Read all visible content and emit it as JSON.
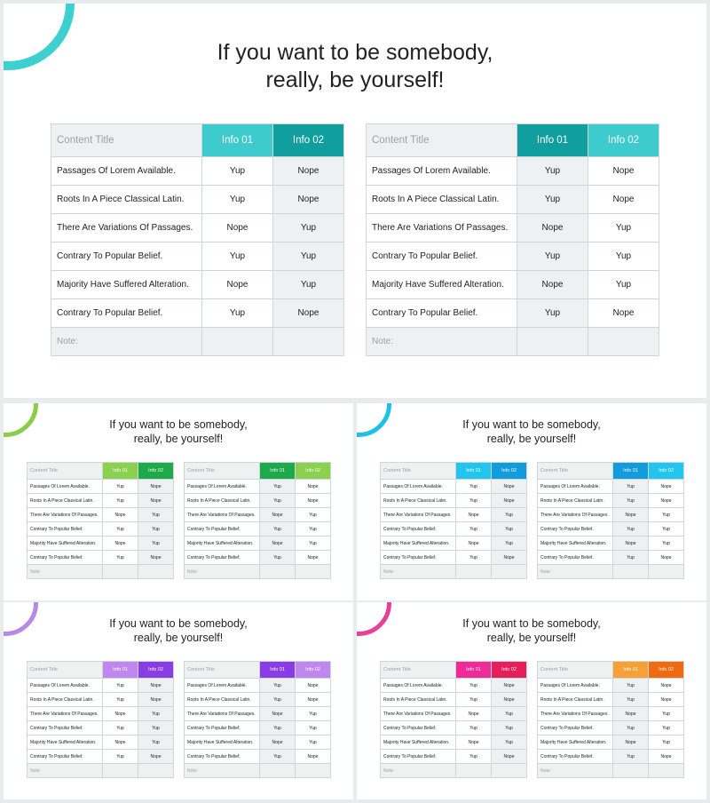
{
  "table": {
    "title_header": "Content Title",
    "info_headers": [
      "Info 01",
      "Info 02"
    ],
    "rows": [
      {
        "label": "Passages Of Lorem Available.",
        "info1": "Yup",
        "info2": "Nope"
      },
      {
        "label": "Roots In A Piece Classical Latin.",
        "info1": "Yup",
        "info2": "Nope"
      },
      {
        "label": "There Are Variations Of Passages.",
        "info1": "Nope",
        "info2": "Yup"
      },
      {
        "label": "Contrary To Popular Belief.",
        "info1": "Yup",
        "info2": "Yup"
      },
      {
        "label": "Majority Have Suffered Alteration.",
        "info1": "Nope",
        "info2": "Yup"
      },
      {
        "label": "Contrary To Popular Belief.",
        "info1": "Yup",
        "info2": "Nope"
      }
    ],
    "note_label": "Note:"
  },
  "slides": [
    {
      "title_lines": [
        "If you want to be somebody,",
        "really, be yourself!"
      ],
      "ring_color": "#3ecfd1",
      "left_table": {
        "header_colors": [
          "#3dcbcd",
          "#109e9f"
        ],
        "shaded_col": 1
      },
      "right_table": {
        "header_colors": [
          "#109e9f",
          "#3dcbcd"
        ],
        "shaded_col": 0
      }
    },
    {
      "title_lines": [
        "If you want to be somebody,",
        "really, be yourself!"
      ],
      "ring_color": "#8bcc4a",
      "left_table": {
        "header_colors": [
          "#8bd04f",
          "#1ea94a"
        ],
        "shaded_col": 1
      },
      "right_table": {
        "header_colors": [
          "#1ea94a",
          "#8bd04f"
        ],
        "shaded_col": 0
      }
    },
    {
      "title_lines": [
        "If you want to be somebody,",
        "really, be yourself!"
      ],
      "ring_color": "#1ec0e6",
      "left_table": {
        "header_colors": [
          "#22c5ee",
          "#129bdd"
        ],
        "shaded_col": 1
      },
      "right_table": {
        "header_colors": [
          "#129bdd",
          "#22c5ee"
        ],
        "shaded_col": 0
      }
    },
    {
      "title_lines": [
        "If you want to be somebody,",
        "really, be yourself!"
      ],
      "ring_color": "#b58ae6",
      "left_table": {
        "header_colors": [
          "#bf88ee",
          "#8a3ce6"
        ],
        "shaded_col": 1
      },
      "right_table": {
        "header_colors": [
          "#8a3ce6",
          "#bf88ee"
        ],
        "shaded_col": 0
      }
    },
    {
      "title_lines": [
        "If you want to be somebody,",
        "really, be yourself!"
      ],
      "ring_color": "#e8409a",
      "left_table": {
        "header_colors": [
          "#f02a96",
          "#e81e5c"
        ],
        "shaded_col": 1
      },
      "right_table": {
        "header_colors": [
          "#f6a035",
          "#f06a10"
        ],
        "shaded_col": 0
      }
    }
  ]
}
